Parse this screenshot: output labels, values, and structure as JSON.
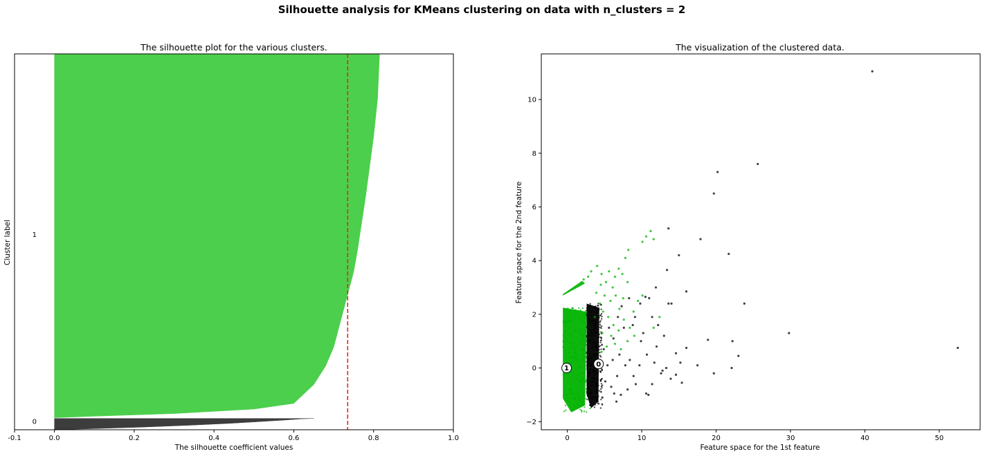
{
  "suptitle": "Silhouette analysis for KMeans clustering on data with n_clusters = 2",
  "chart_data": [
    {
      "type": "area",
      "title": "The silhouette plot for the various clusters.",
      "xlabel": "The silhouette coefficient values",
      "ylabel": "Cluster label",
      "xlim": [
        -0.1,
        1.0
      ],
      "xticks": [
        -0.1,
        0.0,
        0.2,
        0.4,
        0.6,
        0.8,
        1.0
      ],
      "xtick_labels": [
        "-0.1",
        "0.0",
        "0.2",
        "0.4",
        "0.6",
        "0.8",
        "1.0"
      ],
      "ylim": [
        0,
        100
      ],
      "cluster_labels": [
        {
          "text": "0",
          "y": 2.3
        },
        {
          "text": "1",
          "y": 52.0
        }
      ],
      "clusters": [
        {
          "name": "0",
          "color": "#3d3d3d",
          "y_range": [
            0,
            3.0
          ],
          "profile_x": [
            0.65,
            0.62,
            0.58,
            0.52,
            0.44,
            0.34,
            0.22,
            0.1,
            0.0
          ],
          "profile_y": [
            3.0,
            2.9,
            2.6,
            2.2,
            1.7,
            1.2,
            0.7,
            0.3,
            0.0
          ]
        },
        {
          "name": "1",
          "color": "#4ccf4c",
          "y_range": [
            3.0,
            100
          ],
          "profile_x": [
            0.815,
            0.81,
            0.8,
            0.79,
            0.78,
            0.77,
            0.76,
            0.75,
            0.74,
            0.73,
            0.72,
            0.71,
            0.7,
            0.68,
            0.65,
            0.62,
            0.6,
            0.5,
            0.3,
            0.1,
            0.0
          ],
          "profile_y": [
            100,
            88,
            78,
            70,
            62,
            55,
            48,
            42,
            38,
            34,
            30,
            26,
            22,
            17,
            12,
            9,
            7,
            5.5,
            4.3,
            3.6,
            3.2
          ]
        }
      ],
      "average_line": {
        "x": 0.735,
        "color": "#e8261f",
        "style": "dashed"
      }
    },
    {
      "type": "scatter",
      "title": "The visualization of the clustered data.",
      "xlabel": "Feature space for the 1st feature",
      "ylabel": "Feature space for the 2nd feature",
      "xlim": [
        -3.5,
        55.5
      ],
      "ylim": [
        -2.3,
        11.7
      ],
      "xticks": [
        0,
        10,
        20,
        30,
        40,
        50
      ],
      "xtick_labels": [
        "0",
        "10",
        "20",
        "30",
        "40",
        "50"
      ],
      "yticks": [
        -2,
        0,
        2,
        4,
        6,
        8,
        10
      ],
      "ytick_labels": [
        "−2",
        "0",
        "2",
        "4",
        "6",
        "8",
        "10"
      ],
      "clusters": [
        {
          "name": "1",
          "color": "#00b300",
          "dense_region": {
            "x": [
              -0.6,
              2.6
            ],
            "y": [
              -1.65,
              2.25
            ]
          },
          "upper_streak": {
            "x": [
              -0.6,
              2.0
            ],
            "y": [
              2.75,
              3.25
            ]
          },
          "points": [
            [
              2.2,
              3.3
            ],
            [
              2.8,
              3.4
            ],
            [
              3.2,
              3.6
            ],
            [
              4.0,
              3.8
            ],
            [
              4.6,
              3.5
            ],
            [
              5.2,
              3.2
            ],
            [
              5.6,
              3.6
            ],
            [
              6.1,
              3.0
            ],
            [
              6.4,
              3.4
            ],
            [
              6.9,
              3.7
            ],
            [
              7.4,
              3.5
            ],
            [
              7.8,
              4.1
            ],
            [
              8.2,
              4.4
            ],
            [
              8.1,
              3.2
            ],
            [
              7.5,
              2.6
            ],
            [
              7.0,
              2.2
            ],
            [
              6.5,
              2.7
            ],
            [
              5.8,
              2.5
            ],
            [
              5.0,
              2.7
            ],
            [
              4.4,
              2.4
            ],
            [
              4.8,
              2.1
            ],
            [
              5.5,
              1.9
            ],
            [
              6.2,
              1.6
            ],
            [
              6.9,
              1.4
            ],
            [
              7.6,
              1.8
            ],
            [
              8.4,
              1.5
            ],
            [
              8.9,
              2.1
            ],
            [
              9.5,
              2.5
            ],
            [
              10.1,
              2.7
            ],
            [
              10.6,
              4.9
            ],
            [
              11.2,
              5.1
            ],
            [
              11.6,
              4.8
            ],
            [
              10.1,
              4.7
            ],
            [
              12.4,
              1.9
            ],
            [
              11.6,
              1.5
            ],
            [
              9.0,
              1.2
            ],
            [
              8.1,
              1.0
            ],
            [
              7.2,
              0.7
            ],
            [
              6.4,
              0.9
            ],
            [
              5.3,
              0.8
            ],
            [
              4.6,
              0.6
            ],
            [
              4.1,
              0.2
            ],
            [
              4.7,
              1.3
            ],
            [
              5.9,
              1.2
            ],
            [
              3.7,
              1.9
            ],
            [
              3.9,
              2.8
            ],
            [
              4.5,
              3.1
            ]
          ],
          "centroid": {
            "label": "1",
            "x": -0.1,
            "y": 0.0
          }
        },
        {
          "name": "0",
          "color": "#000000",
          "dense_region": {
            "x": [
              2.6,
              4.3
            ],
            "y": [
              -1.5,
              2.4
            ]
          },
          "points": [
            [
              41.0,
              11.05
            ],
            [
              25.6,
              7.6
            ],
            [
              20.2,
              7.3
            ],
            [
              19.7,
              6.5
            ],
            [
              13.6,
              5.2
            ],
            [
              17.9,
              4.8
            ],
            [
              15.0,
              4.2
            ],
            [
              21.7,
              4.25
            ],
            [
              13.4,
              3.65
            ],
            [
              11.9,
              3.0
            ],
            [
              23.8,
              2.4
            ],
            [
              16.0,
              2.85
            ],
            [
              14.0,
              2.4
            ],
            [
              13.6,
              2.4
            ],
            [
              11.0,
              2.6
            ],
            [
              10.5,
              2.65
            ],
            [
              9.8,
              2.4
            ],
            [
              8.3,
              2.6
            ],
            [
              7.3,
              2.3
            ],
            [
              6.8,
              1.9
            ],
            [
              8.8,
              1.6
            ],
            [
              10.2,
              1.3
            ],
            [
              11.4,
              1.9
            ],
            [
              12.2,
              1.6
            ],
            [
              13.0,
              1.2
            ],
            [
              14.6,
              0.55
            ],
            [
              15.2,
              0.2
            ],
            [
              16.0,
              0.75
            ],
            [
              18.9,
              1.05
            ],
            [
              22.2,
              1.0
            ],
            [
              23.0,
              0.45
            ],
            [
              29.8,
              1.3
            ],
            [
              52.5,
              0.75
            ],
            [
              19.7,
              -0.2
            ],
            [
              22.1,
              0.0
            ],
            [
              14.6,
              -0.25
            ],
            [
              12.6,
              -0.2
            ],
            [
              11.4,
              -0.6
            ],
            [
              10.6,
              -0.95
            ],
            [
              10.9,
              -1.0
            ],
            [
              9.2,
              -0.6
            ],
            [
              8.1,
              -0.8
            ],
            [
              7.2,
              -1.0
            ],
            [
              6.6,
              -1.25
            ],
            [
              5.9,
              -0.7
            ],
            [
              5.1,
              -0.5
            ],
            [
              4.7,
              -1.1
            ],
            [
              6.1,
              0.3
            ],
            [
              7.0,
              0.5
            ],
            [
              8.4,
              0.3
            ],
            [
              9.7,
              0.1
            ],
            [
              10.7,
              0.5
            ],
            [
              12.0,
              0.8
            ],
            [
              13.3,
              0.0
            ],
            [
              6.7,
              -0.3
            ],
            [
              5.4,
              0.1
            ],
            [
              4.9,
              0.7
            ],
            [
              5.6,
              1.5
            ],
            [
              6.2,
              1.1
            ],
            [
              7.6,
              1.5
            ],
            [
              9.1,
              1.9
            ],
            [
              9.9,
              1.0
            ],
            [
              13.9,
              -0.4
            ],
            [
              15.4,
              -0.55
            ],
            [
              17.5,
              0.1
            ],
            [
              11.7,
              0.2
            ],
            [
              12.8,
              -0.1
            ],
            [
              8.9,
              -0.3
            ],
            [
              7.8,
              0.1
            ],
            [
              6.3,
              -0.95
            ]
          ],
          "centroid": {
            "label": "0",
            "x": 4.2,
            "y": 0.15
          }
        }
      ]
    }
  ]
}
